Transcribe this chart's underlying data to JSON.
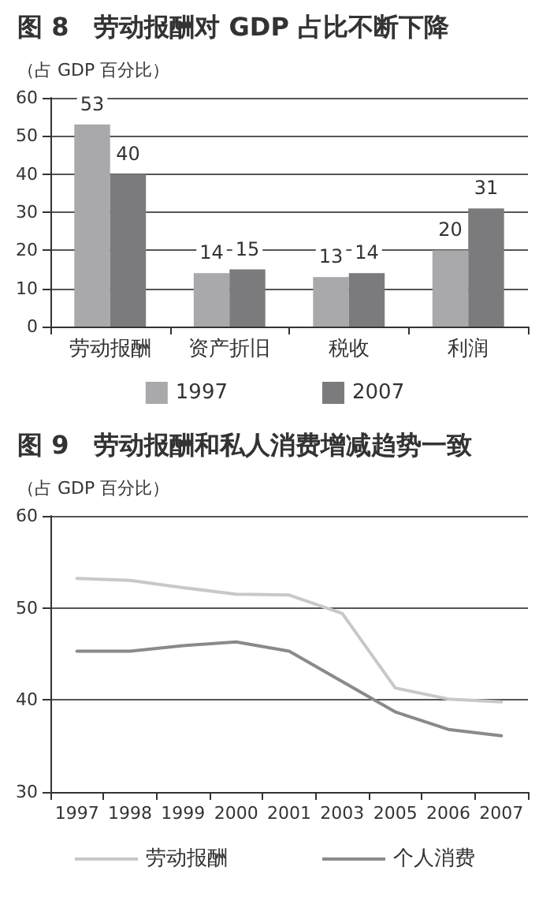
{
  "chart_data": [
    {
      "type": "bar",
      "title": "图 8　劳动报酬对 GDP 占比不断下降",
      "ylabel": "（占 GDP 百分比）",
      "categories": [
        "劳动报酬",
        "资产折旧",
        "税收",
        "利润"
      ],
      "series": [
        {
          "name": "1997",
          "color": "#a9a9ab",
          "values": [
            53,
            14,
            13,
            20
          ]
        },
        {
          "name": "2007",
          "color": "#7b7b7d",
          "values": [
            40,
            15,
            14,
            31
          ]
        }
      ],
      "ylim": [
        0,
        60
      ],
      "yticks": [
        0,
        10,
        20,
        30,
        40,
        50,
        60
      ],
      "grid": "y",
      "legend": "bottom",
      "data_labels": true
    },
    {
      "type": "line",
      "title": "图 9　劳动报酬和私人消费增减趋势一致",
      "ylabel": "（占 GDP 百分比）",
      "categories": [
        "1997",
        "1998",
        "1999",
        "2000",
        "2001",
        "2003",
        "2005",
        "2006",
        "2007"
      ],
      "series": [
        {
          "name": "劳动报酬",
          "color": "#c8c8c8",
          "values": [
            53.2,
            53.0,
            52.2,
            51.5,
            51.4,
            49.4,
            41.3,
            40.1,
            39.8
          ]
        },
        {
          "name": "个人消费",
          "color": "#8a8a8a",
          "values": [
            45.3,
            45.3,
            45.9,
            46.3,
            45.3,
            42.0,
            38.7,
            36.8,
            36.1
          ]
        }
      ],
      "ylim": [
        30,
        60
      ],
      "yticks": [
        30,
        40,
        50,
        60
      ],
      "grid": "y",
      "legend": "bottom",
      "marker": "none",
      "line_style": "solid"
    }
  ]
}
